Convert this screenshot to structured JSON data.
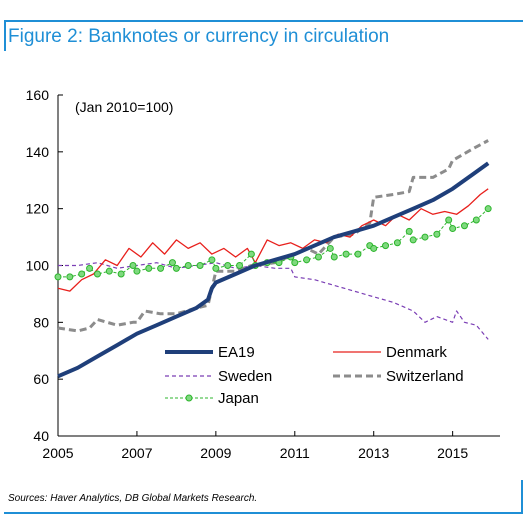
{
  "title": "Figure 2:  Banknotes or currency in circulation",
  "source": "Sources: Haver Analytics, DB Global Markets Research.",
  "chart_data": {
    "type": "line",
    "annotation": "(Jan 2010=100)",
    "xlim": [
      2005,
      2016.2
    ],
    "ylim": [
      40,
      160
    ],
    "x_ticks": [
      2005,
      2007,
      2009,
      2011,
      2013,
      2015
    ],
    "y_ticks": [
      40,
      60,
      80,
      100,
      120,
      140,
      160
    ],
    "legend_placement": "bottom-center",
    "series": [
      {
        "name": "EA19",
        "color": "#1f3f7a",
        "style": "solid-thick",
        "points": [
          [
            2005.0,
            61
          ],
          [
            2005.5,
            64
          ],
          [
            2006.0,
            68
          ],
          [
            2006.5,
            72
          ],
          [
            2007.0,
            76
          ],
          [
            2007.5,
            79
          ],
          [
            2008.0,
            82
          ],
          [
            2008.5,
            85
          ],
          [
            2008.8,
            88
          ],
          [
            2008.9,
            92
          ],
          [
            2009.0,
            94
          ],
          [
            2009.5,
            97
          ],
          [
            2010.0,
            100
          ],
          [
            2010.5,
            102
          ],
          [
            2011.0,
            104
          ],
          [
            2011.5,
            107
          ],
          [
            2012.0,
            110
          ],
          [
            2012.5,
            112
          ],
          [
            2013.0,
            114
          ],
          [
            2013.5,
            117
          ],
          [
            2014.0,
            120
          ],
          [
            2014.5,
            123
          ],
          [
            2015.0,
            127
          ],
          [
            2015.5,
            132
          ],
          [
            2015.9,
            136
          ]
        ]
      },
      {
        "name": "Denmark",
        "color": "#e8201c",
        "style": "solid",
        "points": [
          [
            2005.0,
            92
          ],
          [
            2005.3,
            91
          ],
          [
            2005.6,
            95
          ],
          [
            2005.9,
            97
          ],
          [
            2006.2,
            102
          ],
          [
            2006.5,
            100
          ],
          [
            2006.8,
            106
          ],
          [
            2007.1,
            103
          ],
          [
            2007.4,
            108
          ],
          [
            2007.7,
            104
          ],
          [
            2008.0,
            109
          ],
          [
            2008.3,
            106
          ],
          [
            2008.6,
            108
          ],
          [
            2008.9,
            104
          ],
          [
            2009.2,
            106
          ],
          [
            2009.5,
            103
          ],
          [
            2009.8,
            106
          ],
          [
            2010.0,
            101
          ],
          [
            2010.3,
            109
          ],
          [
            2010.6,
            107
          ],
          [
            2010.9,
            108
          ],
          [
            2011.2,
            106
          ],
          [
            2011.5,
            109
          ],
          [
            2011.8,
            108
          ],
          [
            2012.1,
            111
          ],
          [
            2012.4,
            110
          ],
          [
            2012.7,
            114
          ],
          [
            2013.0,
            116
          ],
          [
            2013.3,
            114
          ],
          [
            2013.6,
            118
          ],
          [
            2013.9,
            116
          ],
          [
            2014.2,
            120
          ],
          [
            2014.5,
            118
          ],
          [
            2014.8,
            119
          ],
          [
            2015.1,
            118
          ],
          [
            2015.4,
            121
          ],
          [
            2015.7,
            125
          ],
          [
            2015.9,
            127
          ]
        ]
      },
      {
        "name": "Sweden",
        "color": "#7b3fb5",
        "style": "dashed",
        "points": [
          [
            2005.0,
            100
          ],
          [
            2005.5,
            100
          ],
          [
            2006.0,
            101
          ],
          [
            2006.5,
            99
          ],
          [
            2007.0,
            100
          ],
          [
            2007.5,
            101
          ],
          [
            2008.0,
            99
          ],
          [
            2008.5,
            100
          ],
          [
            2009.0,
            101
          ],
          [
            2009.5,
            99
          ],
          [
            2010.0,
            100
          ],
          [
            2010.5,
            99
          ],
          [
            2010.9,
            99
          ],
          [
            2011.0,
            96
          ],
          [
            2011.5,
            95
          ],
          [
            2012.0,
            93
          ],
          [
            2012.5,
            91
          ],
          [
            2013.0,
            89
          ],
          [
            2013.5,
            87
          ],
          [
            2014.0,
            84
          ],
          [
            2014.3,
            80
          ],
          [
            2014.6,
            82
          ],
          [
            2015.0,
            80
          ],
          [
            2015.1,
            84
          ],
          [
            2015.3,
            80
          ],
          [
            2015.6,
            79
          ],
          [
            2015.9,
            74
          ]
        ]
      },
      {
        "name": "Switzerland",
        "color": "#8c8c8c",
        "style": "dashed-thick",
        "points": [
          [
            2005.0,
            78
          ],
          [
            2005.5,
            77
          ],
          [
            2005.8,
            78
          ],
          [
            2006.0,
            81
          ],
          [
            2006.5,
            79
          ],
          [
            2006.9,
            80
          ],
          [
            2007.0,
            80
          ],
          [
            2007.2,
            84
          ],
          [
            2007.6,
            83
          ],
          [
            2008.0,
            83
          ],
          [
            2008.5,
            85
          ],
          [
            2008.8,
            86
          ],
          [
            2009.0,
            98
          ],
          [
            2009.5,
            98
          ],
          [
            2009.9,
            100
          ],
          [
            2010.0,
            100
          ],
          [
            2010.5,
            101
          ],
          [
            2011.0,
            104
          ],
          [
            2011.3,
            106
          ],
          [
            2011.6,
            104
          ],
          [
            2012.0,
            110
          ],
          [
            2012.5,
            111
          ],
          [
            2012.9,
            115
          ],
          [
            2013.0,
            124
          ],
          [
            2013.5,
            125
          ],
          [
            2013.9,
            126
          ],
          [
            2014.0,
            131
          ],
          [
            2014.5,
            131
          ],
          [
            2014.9,
            134
          ],
          [
            2015.0,
            137
          ],
          [
            2015.5,
            141
          ],
          [
            2015.9,
            144
          ]
        ]
      },
      {
        "name": "Japan",
        "color": "#2db52d",
        "style": "dotted-markers",
        "points": [
          [
            2005.0,
            96
          ],
          [
            2005.3,
            96
          ],
          [
            2005.6,
            97
          ],
          [
            2005.8,
            99
          ],
          [
            2006.0,
            97
          ],
          [
            2006.3,
            98
          ],
          [
            2006.6,
            97
          ],
          [
            2006.9,
            100
          ],
          [
            2007.0,
            98
          ],
          [
            2007.3,
            99
          ],
          [
            2007.6,
            99
          ],
          [
            2007.9,
            101
          ],
          [
            2008.0,
            99
          ],
          [
            2008.3,
            100
          ],
          [
            2008.6,
            100
          ],
          [
            2008.9,
            102
          ],
          [
            2009.0,
            99
          ],
          [
            2009.3,
            100
          ],
          [
            2009.6,
            100
          ],
          [
            2009.9,
            104
          ],
          [
            2010.0,
            100
          ],
          [
            2010.3,
            101
          ],
          [
            2010.6,
            101
          ],
          [
            2010.9,
            103
          ],
          [
            2011.0,
            101
          ],
          [
            2011.3,
            102
          ],
          [
            2011.6,
            103
          ],
          [
            2011.9,
            106
          ],
          [
            2012.0,
            103
          ],
          [
            2012.3,
            104
          ],
          [
            2012.6,
            104
          ],
          [
            2012.9,
            107
          ],
          [
            2013.0,
            106
          ],
          [
            2013.3,
            107
          ],
          [
            2013.6,
            108
          ],
          [
            2013.9,
            112
          ],
          [
            2014.0,
            109
          ],
          [
            2014.3,
            110
          ],
          [
            2014.6,
            111
          ],
          [
            2014.9,
            116
          ],
          [
            2015.0,
            113
          ],
          [
            2015.3,
            114
          ],
          [
            2015.6,
            116
          ],
          [
            2015.9,
            120
          ]
        ]
      }
    ]
  }
}
